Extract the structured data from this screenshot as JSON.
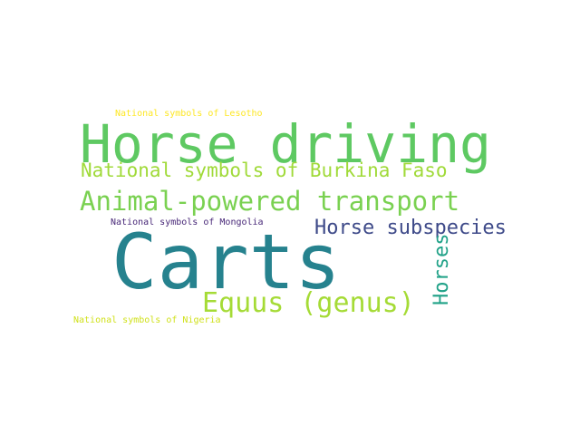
{
  "words": {
    "horse_driving": {
      "text": "Horse driving",
      "color": "#5ec962"
    },
    "burkina_faso": {
      "text": "National symbols of Burkina Faso",
      "color": "#a0da39"
    },
    "animal_powered": {
      "text": "Animal-powered transport",
      "color": "#7ad151"
    },
    "lesotho": {
      "text": "National symbols of Lesotho",
      "color": "#fde725"
    },
    "mongolia": {
      "text": "National symbols of Mongolia",
      "color": "#482878"
    },
    "horse_subspecies": {
      "text": "Horse subspecies",
      "color": "#3e4a89"
    },
    "carts": {
      "text": "Carts",
      "color": "#26828e"
    },
    "equus": {
      "text": "Equus (genus)",
      "color": "#a5db36"
    },
    "horses": {
      "text": "Horses",
      "color": "#1fa187"
    },
    "nigeria": {
      "text": "National symbols of Nigeria",
      "color": "#d0e11c"
    }
  }
}
